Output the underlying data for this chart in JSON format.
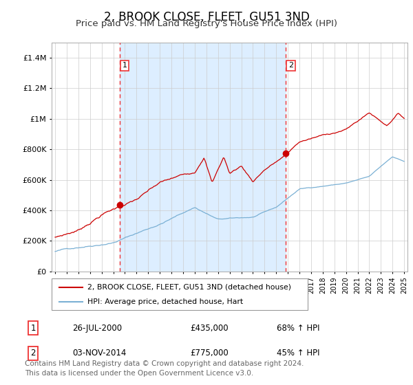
{
  "title": "2, BROOK CLOSE, FLEET, GU51 3ND",
  "subtitle": "Price paid vs. HM Land Registry's House Price Index (HPI)",
  "title_fontsize": 12,
  "subtitle_fontsize": 9.5,
  "ylim": [
    0,
    1500000
  ],
  "yticks": [
    0,
    200000,
    400000,
    600000,
    800000,
    1000000,
    1200000,
    1400000
  ],
  "ytick_labels": [
    "£0",
    "£200K",
    "£400K",
    "£600K",
    "£800K",
    "£1M",
    "£1.2M",
    "£1.4M"
  ],
  "purchase1_date": 2000.57,
  "purchase1_price": 435000,
  "purchase1_label": "1",
  "purchase2_date": 2014.84,
  "purchase2_price": 775000,
  "purchase2_label": "2",
  "red_line_color": "#cc0000",
  "blue_line_color": "#7ab0d4",
  "fill_color": "#ddeeff",
  "vline_color": "#ee3333",
  "dot_color": "#cc0000",
  "grid_color": "#cccccc",
  "background_color": "#ffffff",
  "legend_line1": "2, BROOK CLOSE, FLEET, GU51 3ND (detached house)",
  "legend_line2": "HPI: Average price, detached house, Hart",
  "table_row1_num": "1",
  "table_row1_date": "26-JUL-2000",
  "table_row1_price": "£435,000",
  "table_row1_hpi": "68% ↑ HPI",
  "table_row2_num": "2",
  "table_row2_date": "03-NOV-2014",
  "table_row2_price": "£775,000",
  "table_row2_hpi": "45% ↑ HPI",
  "footer": "Contains HM Land Registry data © Crown copyright and database right 2024.\nThis data is licensed under the Open Government Licence v3.0.",
  "footer_fontsize": 7.5
}
